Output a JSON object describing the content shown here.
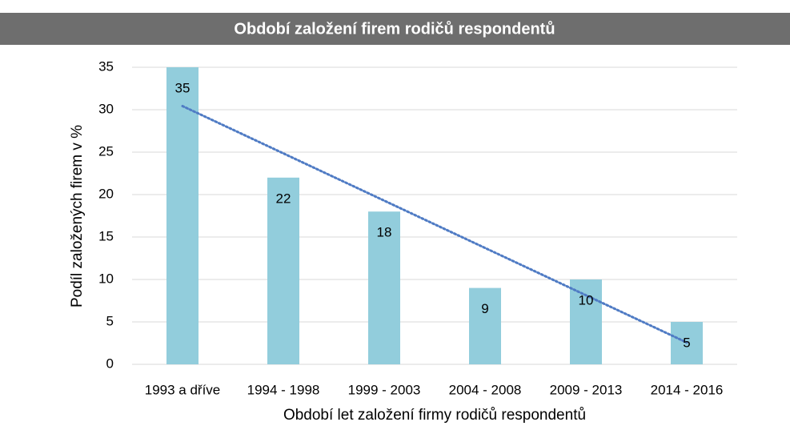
{
  "chart_data": {
    "type": "bar",
    "title": "Období založení firem rodičů respondentů",
    "x_label": "Období let založení firmy rodičů respondentů",
    "y_label": "Podíl založených firem v %",
    "categories": [
      "1993 a dříve",
      "1994 - 1998",
      "1999 - 2003",
      "2004 - 2008",
      "2009 - 2013",
      "2014 - 2016"
    ],
    "values": [
      35,
      22,
      18,
      9,
      10,
      5
    ],
    "color": "#92cddc",
    "trendline": "linear",
    "trendline_color": "#4f7bc4",
    "ylim": [
      0,
      35
    ],
    "yticks": [
      0,
      5,
      10,
      15,
      20,
      25,
      30,
      35
    ],
    "grid": true
  }
}
